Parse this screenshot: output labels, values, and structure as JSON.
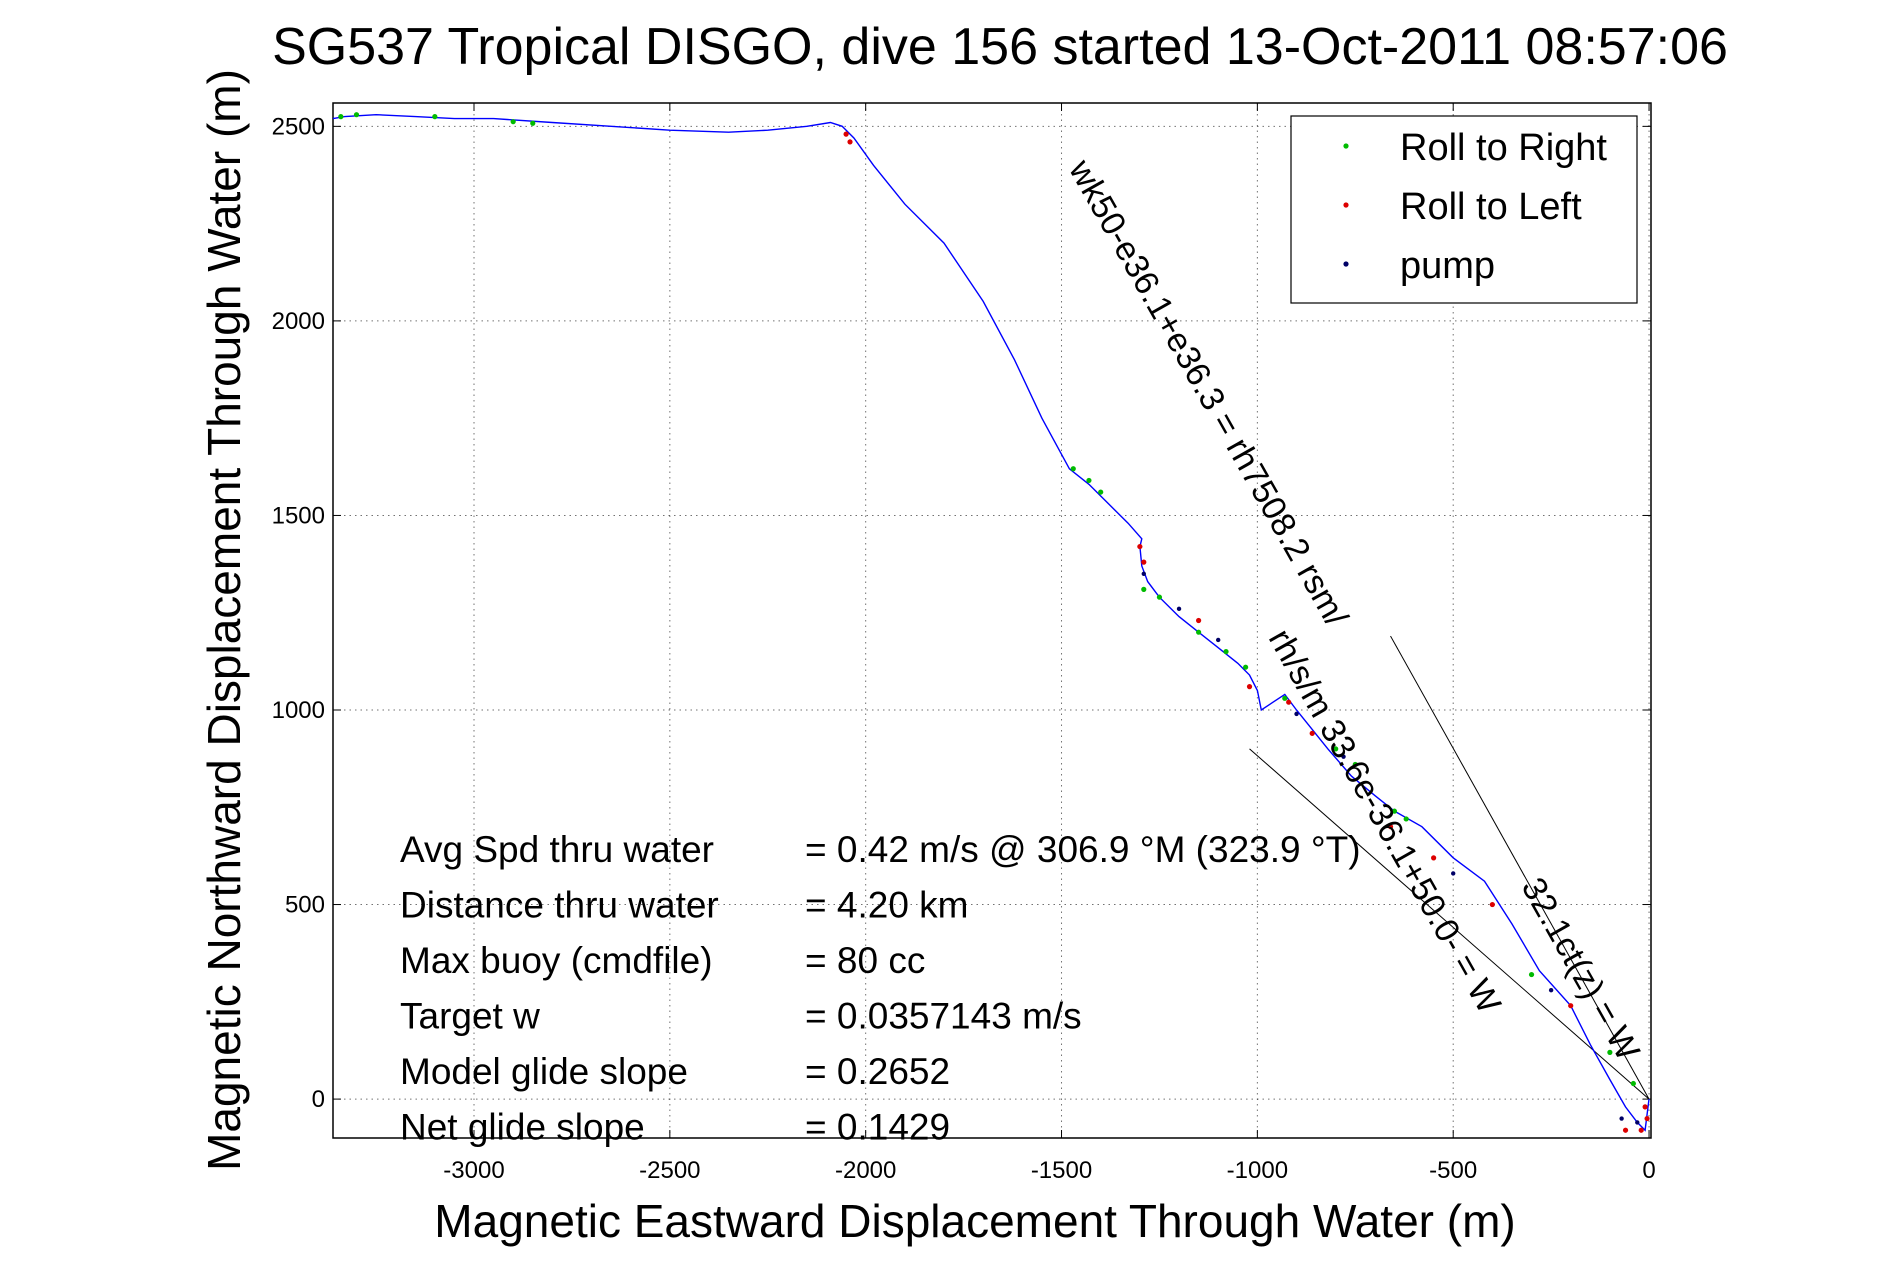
{
  "chart_data": {
    "type": "line",
    "title": "SG537 Tropical DISGO, dive 156 started 13-Oct-2011 08:57:06",
    "xlabel": "Magnetic Eastward Displacement Through Water (m)",
    "ylabel": "Magnetic Northward Displacement Through Water (m)",
    "xlim": [
      -3360,
      5
    ],
    "ylim": [
      -100,
      2560
    ],
    "xticks": [
      -3000,
      -2500,
      -2000,
      -1500,
      -1000,
      -500,
      0
    ],
    "xtick_labels": [
      "-3000",
      "-2500",
      "-2000",
      "-1500",
      "-1000",
      "-500",
      "0"
    ],
    "yticks": [
      0,
      500,
      1000,
      1500,
      2000,
      2500
    ],
    "ytick_labels": [
      "0",
      "500",
      "1000",
      "1500",
      "2000",
      "2500"
    ],
    "grid": true,
    "legend_position": "top-right",
    "legend": [
      {
        "label": "Roll to Right",
        "color": "#00bb00"
      },
      {
        "label": "Roll to Left",
        "color": "#dd0000"
      },
      {
        "label": "pump",
        "color": "#000066"
      }
    ],
    "track": {
      "color": "#0000ff",
      "x": [
        0,
        -10,
        -30,
        -60,
        -100,
        -150,
        -200,
        -280,
        -350,
        -420,
        -500,
        -580,
        -650,
        -700,
        -760,
        -820,
        -860,
        -900,
        -930,
        -960,
        -990,
        -1000,
        -1020,
        -1050,
        -1100,
        -1150,
        -1200,
        -1250,
        -1280,
        -1295,
        -1300,
        -1295,
        -1330,
        -1380,
        -1430,
        -1480,
        -1550,
        -1620,
        -1700,
        -1800,
        -1900,
        -1980,
        -2030,
        -2060,
        -2090,
        -2150,
        -2250,
        -2350,
        -2500,
        -2650,
        -2800,
        -2950,
        -3050,
        -3150,
        -3250,
        -3330,
        -3360
      ],
      "y": [
        0,
        -80,
        -60,
        -20,
        50,
        140,
        240,
        330,
        450,
        560,
        620,
        700,
        740,
        780,
        830,
        900,
        950,
        1000,
        1040,
        1020,
        1000,
        1050,
        1090,
        1120,
        1160,
        1200,
        1240,
        1290,
        1330,
        1370,
        1420,
        1440,
        1480,
        1530,
        1580,
        1620,
        1750,
        1900,
        2050,
        2200,
        2300,
        2400,
        2470,
        2500,
        2510,
        2500,
        2490,
        2485,
        2490,
        2500,
        2510,
        2520,
        2520,
        2525,
        2530,
        2525,
        2520
      ]
    },
    "roll_to_right_points": [
      [
        -3340,
        2525
      ],
      [
        -3300,
        2530
      ],
      [
        -3100,
        2525
      ],
      [
        -2900,
        2512
      ],
      [
        -2850,
        2508
      ],
      [
        -1470,
        1620
      ],
      [
        -1430,
        1590
      ],
      [
        -1400,
        1560
      ],
      [
        -1290,
        1310
      ],
      [
        -1250,
        1290
      ],
      [
        -1150,
        1200
      ],
      [
        -1080,
        1150
      ],
      [
        -1030,
        1110
      ],
      [
        -930,
        1030
      ],
      [
        -800,
        900
      ],
      [
        -750,
        860
      ],
      [
        -650,
        740
      ],
      [
        -620,
        720
      ],
      [
        -300,
        320
      ],
      [
        -100,
        120
      ],
      [
        -40,
        40
      ]
    ],
    "roll_to_left_points": [
      [
        -2050,
        2480
      ],
      [
        -2040,
        2460
      ],
      [
        -1300,
        1420
      ],
      [
        -1290,
        1380
      ],
      [
        -1150,
        1230
      ],
      [
        -1020,
        1060
      ],
      [
        -920,
        1020
      ],
      [
        -860,
        940
      ],
      [
        -660,
        700
      ],
      [
        -550,
        620
      ],
      [
        -400,
        500
      ],
      [
        -200,
        240
      ],
      [
        -10,
        -20
      ],
      [
        -5,
        -50
      ],
      [
        -20,
        -80
      ],
      [
        -60,
        -80
      ]
    ],
    "pump_points": [
      [
        -1290,
        1350
      ],
      [
        -1200,
        1260
      ],
      [
        -1100,
        1180
      ],
      [
        -900,
        990
      ],
      [
        -780,
        880
      ],
      [
        -500,
        580
      ],
      [
        -250,
        280
      ],
      [
        -70,
        -50
      ],
      [
        -30,
        -60
      ]
    ],
    "wedge_lines": [
      {
        "x": [
          0,
          -660
        ],
        "y": [
          0,
          1190
        ]
      },
      {
        "x": [
          0,
          -1020
        ],
        "y": [
          0,
          900
        ]
      }
    ],
    "rotated_annotations": [
      {
        "text": "wk50-e36.1+e36.3 = rh7508.2 rsm/",
        "x": -1150,
        "y": 1800,
        "angle": 60.5
      },
      {
        "text": "rh/s/m 33.6e-36.1+50.0- = W",
        "x": -700,
        "y": 700,
        "angle": 60.5
      },
      {
        "text": "32.1ct(z) = W",
        "x": -200,
        "y": 320,
        "angle": 60.5
      }
    ],
    "stats": {
      "labels": [
        "Avg Spd thru water",
        "Distance thru water",
        "Max buoy (cmdfile)",
        "Target w",
        "Model glide slope",
        "Net glide slope"
      ],
      "values": [
        "=  0.42 m/s @ 306.9 °M (323.9 °T)",
        "=  4.20 km",
        "= 80 cc",
        "= 0.0357143 m/s",
        "= 0.2652",
        "= 0.1429"
      ]
    }
  }
}
